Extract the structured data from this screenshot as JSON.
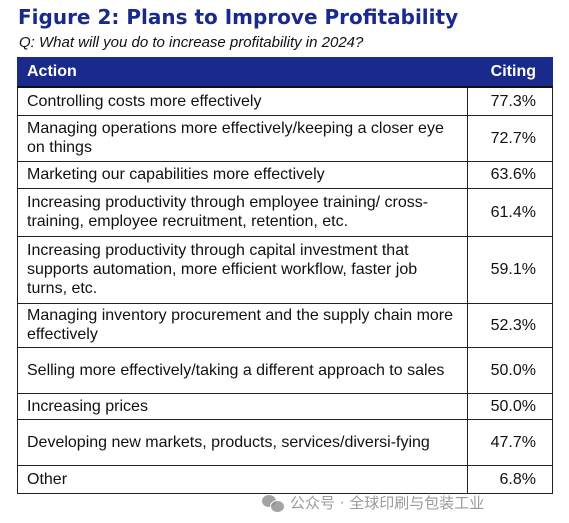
{
  "title": "Figure 2: Plans to Improve Profitability",
  "subtitle": "Q: What will you do to increase profitability in 2024?",
  "columns": [
    "Action",
    "Citing"
  ],
  "chart_data": {
    "type": "table",
    "title": "Figure 2: Plans to Improve Profitability",
    "subtitle": "Q: What will you do to increase profitability in 2024?",
    "columns": [
      "Action",
      "Citing"
    ],
    "rows": [
      {
        "action": "Controlling costs more effectively",
        "citing": "77.3%",
        "value": 77.3
      },
      {
        "action": "Managing operations more effectively/keeping a closer eye on things",
        "citing": "72.7%",
        "value": 72.7
      },
      {
        "action": "Marketing our capabilities more effectively",
        "citing": "63.6%",
        "value": 63.6
      },
      {
        "action": "Increasing productivity through employee training/ cross-training, employee recruitment, retention, etc.",
        "citing": "61.4%",
        "value": 61.4
      },
      {
        "action": "Increasing productivity through capital investment that supports automation, more efficient workflow, faster job turns, etc.",
        "citing": "59.1%",
        "value": 59.1
      },
      {
        "action": "Managing inventory procurement and the supply chain more effectively",
        "citing": "52.3%",
        "value": 52.3
      },
      {
        "action": "Selling more effectively/taking a different approach to sales",
        "citing": "50.0%",
        "value": 50.0
      },
      {
        "action": "Increasing prices",
        "citing": "50.0%",
        "value": 50.0
      },
      {
        "action": "Developing new markets, products, services/diversi-fying",
        "citing": "47.7%",
        "value": 47.7
      },
      {
        "action": "Other",
        "citing": "6.8%",
        "value": 6.8
      }
    ]
  },
  "colors": {
    "title": "#1a2a8c",
    "header_background": "#1a2a8c",
    "header_text": "#ffffff",
    "border": "#222222"
  },
  "watermark": {
    "icon": "wechat-icon",
    "text": "公众号 · 全球印刷与包装工业"
  }
}
